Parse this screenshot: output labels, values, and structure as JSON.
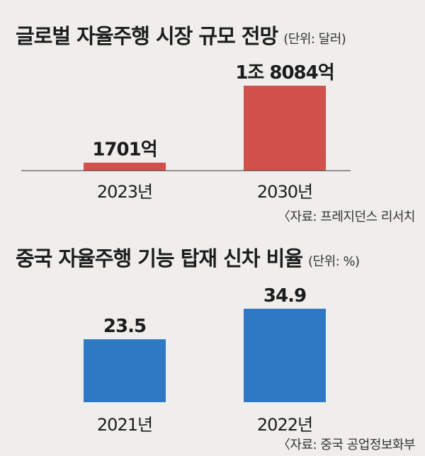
{
  "chart_data": [
    {
      "type": "bar",
      "title": "글로벌 자율주행 시장 규모 전망",
      "unit": "(단위: 달러)",
      "categories": [
        "2023년",
        "2030년"
      ],
      "values": [
        170100000000,
        1808400000000
      ],
      "value_labels": [
        "1701억",
        "1조 8084억"
      ],
      "source": "〈자료: 프레지던스 리서치",
      "color": "#d1524d"
    },
    {
      "type": "bar",
      "title": "중국 자율주행 기능 탑재 신차 비율",
      "unit": "(단위: %)",
      "categories": [
        "2021년",
        "2022년"
      ],
      "values": [
        23.5,
        34.9
      ],
      "value_labels": [
        "23.5",
        "34.9"
      ],
      "source": "〈자료: 중국 공업정보화부",
      "color": "#2f78c4"
    }
  ]
}
